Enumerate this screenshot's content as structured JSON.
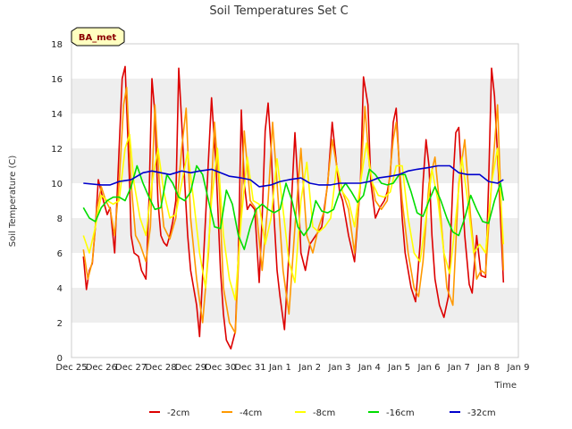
{
  "chart_data": {
    "type": "line",
    "title": "Soil Temperatures Set C",
    "xlabel": "Time",
    "ylabel": "Soil Temperature (C)",
    "station_badge": "BA_met",
    "ylim": [
      0,
      18
    ],
    "yticks": [
      0,
      2,
      4,
      6,
      8,
      10,
      12,
      14,
      16,
      18
    ],
    "xlim": [
      0,
      15
    ],
    "x_unit": "days since Dec 25",
    "xtick_labels": [
      "Dec 25",
      "Dec 26",
      "Dec 27",
      "Dec 28",
      "Dec 29",
      "Dec 30",
      "Dec 31",
      "Jan 1",
      "Jan 2",
      "Jan 3",
      "Jan 4",
      "Jan 5",
      "Jan 6",
      "Jan 7",
      "Jan 8",
      "Jan 9"
    ],
    "grid": "horizontal bands",
    "legend_position": "bottom",
    "colors": {
      "band": "#eeeeee",
      "badge_fill": "#ffffc0"
    },
    "series": [
      {
        "name": "-2cm",
        "color": "#dd0000",
        "x": [
          0.4,
          0.5,
          0.6,
          0.7,
          0.8,
          0.9,
          1.0,
          1.1,
          1.2,
          1.3,
          1.45,
          1.6,
          1.7,
          1.8,
          1.95,
          2.0,
          2.1,
          2.25,
          2.35,
          2.5,
          2.6,
          2.7,
          2.8,
          2.9,
          3.0,
          3.1,
          3.2,
          3.3,
          3.4,
          3.5,
          3.6,
          3.7,
          3.8,
          3.9,
          4.0,
          4.2,
          4.3,
          4.5,
          4.7,
          4.85,
          5.0,
          5.1,
          5.2,
          5.35,
          5.5,
          5.6,
          5.7,
          5.8,
          5.9,
          6.0,
          6.15,
          6.3,
          6.4,
          6.5,
          6.6,
          6.7,
          6.8,
          6.9,
          7.0,
          7.15,
          7.3,
          7.5,
          7.6,
          7.7,
          7.85,
          8.0,
          8.2,
          8.4,
          8.6,
          8.75,
          8.9,
          9.0,
          9.1,
          9.2,
          9.3,
          9.5,
          9.7,
          9.8,
          9.95,
          10.05,
          10.2,
          10.35,
          10.5,
          10.6,
          10.7,
          10.8,
          10.9,
          11.0,
          11.1,
          11.2,
          11.4,
          11.55,
          11.7,
          11.8,
          11.9,
          12.0,
          12.1,
          12.2,
          12.35,
          12.5,
          12.65,
          12.8,
          12.9,
          13.0,
          13.1,
          13.2,
          13.35,
          13.45,
          13.6,
          13.75,
          13.9,
          14.0,
          14.1,
          14.2,
          14.35,
          14.5
        ],
        "values": [
          5.8,
          3.9,
          5.0,
          5.4,
          7.5,
          10.2,
          9.5,
          8.8,
          8.2,
          8.6,
          6.0,
          12.0,
          16.0,
          16.7,
          10.0,
          7.0,
          6.0,
          5.8,
          5.0,
          4.5,
          9.0,
          16.0,
          14.0,
          9.0,
          7.0,
          6.6,
          6.4,
          7.0,
          7.8,
          9.0,
          16.6,
          13.5,
          10.0,
          7.0,
          5.0,
          3.0,
          1.2,
          8.0,
          14.9,
          11.0,
          5.0,
          2.5,
          1.0,
          0.5,
          1.5,
          6.0,
          14.2,
          10.0,
          8.5,
          8.8,
          8.5,
          4.3,
          8.0,
          13.0,
          14.6,
          12.0,
          8.0,
          5.0,
          3.5,
          1.6,
          6.0,
          12.9,
          10.0,
          6.0,
          5.0,
          6.5,
          7.0,
          7.5,
          10.0,
          13.5,
          11.0,
          9.5,
          9.0,
          8.0,
          7.0,
          5.5,
          10.0,
          16.1,
          14.5,
          10.0,
          8.0,
          8.6,
          9.0,
          9.5,
          10.5,
          13.5,
          14.3,
          11.0,
          8.0,
          6.0,
          4.0,
          3.2,
          6.5,
          10.0,
          12.5,
          11.0,
          7.0,
          4.5,
          3.0,
          2.3,
          3.5,
          10.0,
          12.9,
          13.2,
          10.0,
          7.0,
          4.2,
          3.7,
          7.0,
          4.7,
          4.6,
          10.0,
          16.6,
          15.0,
          10.0,
          4.3
        ]
      },
      {
        "name": "-4cm",
        "color": "#ff9900",
        "x": [
          0.4,
          0.55,
          0.7,
          0.85,
          1.0,
          1.15,
          1.3,
          1.45,
          1.6,
          1.75,
          1.85,
          2.0,
          2.15,
          2.3,
          2.5,
          2.65,
          2.8,
          2.95,
          3.1,
          3.3,
          3.5,
          3.7,
          3.85,
          4.0,
          4.2,
          4.4,
          4.6,
          4.8,
          4.95,
          5.1,
          5.3,
          5.5,
          5.65,
          5.8,
          6.0,
          6.2,
          6.4,
          6.6,
          6.75,
          6.9,
          7.1,
          7.3,
          7.5,
          7.7,
          7.9,
          8.1,
          8.3,
          8.5,
          8.75,
          8.9,
          9.1,
          9.3,
          9.5,
          9.7,
          9.85,
          10.0,
          10.2,
          10.4,
          10.6,
          10.8,
          10.9,
          11.1,
          11.3,
          11.5,
          11.65,
          11.8,
          12.0,
          12.2,
          12.4,
          12.6,
          12.8,
          13.0,
          13.2,
          13.4,
          13.6,
          13.75,
          13.9,
          14.1,
          14.3,
          14.5
        ],
        "values": [
          6.2,
          4.5,
          5.5,
          8.5,
          9.8,
          9.0,
          8.5,
          7.0,
          10.0,
          14.5,
          15.5,
          10.0,
          7.0,
          6.5,
          5.5,
          7.5,
          14.5,
          10.0,
          7.5,
          6.8,
          8.0,
          12.0,
          14.3,
          8.0,
          4.5,
          2.0,
          6.0,
          13.5,
          10.0,
          4.0,
          2.0,
          1.4,
          7.0,
          13.0,
          9.0,
          8.5,
          5.0,
          9.0,
          13.5,
          10.0,
          5.0,
          2.5,
          7.5,
          12.0,
          7.0,
          6.0,
          7.5,
          8.5,
          12.5,
          11.0,
          9.5,
          8.5,
          6.0,
          10.0,
          14.4,
          11.0,
          9.0,
          8.5,
          9.0,
          12.5,
          13.5,
          9.0,
          6.0,
          4.0,
          3.5,
          5.5,
          10.0,
          11.5,
          8.0,
          4.0,
          3.0,
          10.0,
          12.5,
          8.0,
          4.5,
          5.0,
          4.8,
          10.0,
          14.5,
          5.0
        ]
      },
      {
        "name": "-8cm",
        "color": "#ffff00",
        "x": [
          0.4,
          0.6,
          0.8,
          1.0,
          1.2,
          1.4,
          1.6,
          1.8,
          1.95,
          2.1,
          2.3,
          2.5,
          2.7,
          2.9,
          3.1,
          3.3,
          3.5,
          3.7,
          3.9,
          4.1,
          4.3,
          4.5,
          4.7,
          4.9,
          5.1,
          5.3,
          5.5,
          5.7,
          5.9,
          6.1,
          6.3,
          6.5,
          6.7,
          6.9,
          7.1,
          7.3,
          7.5,
          7.7,
          7.9,
          8.1,
          8.3,
          8.5,
          8.7,
          8.9,
          9.1,
          9.3,
          9.5,
          9.7,
          9.9,
          10.1,
          10.3,
          10.5,
          10.7,
          10.9,
          11.1,
          11.3,
          11.5,
          11.7,
          11.9,
          12.1,
          12.3,
          12.5,
          12.7,
          12.9,
          13.1,
          13.3,
          13.5,
          13.7,
          13.9,
          14.1,
          14.3,
          14.5
        ],
        "values": [
          7.0,
          6.0,
          7.5,
          9.3,
          9.0,
          8.8,
          9.0,
          12.0,
          12.8,
          10.0,
          8.0,
          7.0,
          10.0,
          12.0,
          9.5,
          8.0,
          8.2,
          10.0,
          11.8,
          9.0,
          6.0,
          4.0,
          9.0,
          12.0,
          7.0,
          4.5,
          3.3,
          8.0,
          11.5,
          9.0,
          8.8,
          6.5,
          8.0,
          11.4,
          8.5,
          5.5,
          4.3,
          9.0,
          11.2,
          7.5,
          7.2,
          7.5,
          8.0,
          11.0,
          9.5,
          9.0,
          7.5,
          10.0,
          12.3,
          10.0,
          9.3,
          9.2,
          9.5,
          11.0,
          11.0,
          8.0,
          6.0,
          5.5,
          8.0,
          10.8,
          9.0,
          6.0,
          4.8,
          8.0,
          11.5,
          9.0,
          6.0,
          6.5,
          6.0,
          10.0,
          12.0,
          6.5
        ]
      },
      {
        "name": "-16cm",
        "color": "#00dd00",
        "x": [
          0.4,
          0.6,
          0.8,
          1.0,
          1.2,
          1.4,
          1.6,
          1.8,
          2.0,
          2.2,
          2.4,
          2.6,
          2.8,
          3.0,
          3.2,
          3.4,
          3.6,
          3.8,
          4.0,
          4.2,
          4.4,
          4.6,
          4.8,
          5.0,
          5.2,
          5.4,
          5.6,
          5.8,
          6.0,
          6.2,
          6.4,
          6.6,
          6.8,
          7.0,
          7.2,
          7.4,
          7.6,
          7.8,
          8.0,
          8.2,
          8.4,
          8.6,
          8.8,
          9.0,
          9.2,
          9.4,
          9.6,
          9.8,
          10.0,
          10.2,
          10.4,
          10.6,
          10.8,
          11.0,
          11.2,
          11.4,
          11.6,
          11.8,
          12.0,
          12.2,
          12.4,
          12.6,
          12.8,
          13.0,
          13.2,
          13.4,
          13.6,
          13.8,
          14.0,
          14.2,
          14.4,
          14.5
        ],
        "values": [
          8.6,
          8.0,
          7.8,
          8.6,
          9.0,
          9.2,
          9.2,
          9.0,
          9.8,
          11.0,
          10.0,
          9.2,
          8.5,
          8.6,
          10.5,
          10.0,
          9.2,
          9.0,
          9.5,
          11.0,
          10.5,
          9.0,
          7.5,
          7.4,
          9.6,
          8.8,
          7.0,
          6.2,
          7.5,
          8.5,
          8.8,
          8.5,
          8.3,
          8.5,
          10.0,
          9.0,
          7.5,
          7.0,
          7.5,
          9.0,
          8.4,
          8.3,
          8.5,
          9.5,
          10.0,
          9.5,
          8.9,
          9.3,
          10.8,
          10.5,
          10.0,
          9.9,
          10.0,
          10.5,
          10.5,
          9.5,
          8.3,
          8.1,
          9.0,
          9.8,
          9.0,
          8.0,
          7.2,
          7.0,
          8.0,
          9.3,
          8.5,
          7.8,
          7.7,
          9.0,
          10.0,
          9.0
        ]
      },
      {
        "name": "-32cm",
        "color": "#0000cc",
        "x": [
          0.4,
          1.0,
          1.3,
          1.6,
          2.0,
          2.4,
          2.7,
          3.0,
          3.3,
          3.7,
          4.0,
          4.3,
          4.7,
          5.0,
          5.3,
          5.7,
          6.0,
          6.3,
          6.7,
          7.0,
          7.3,
          7.7,
          8.0,
          8.3,
          8.7,
          9.0,
          9.3,
          9.7,
          10.0,
          10.3,
          10.7,
          11.0,
          11.3,
          11.6,
          12.0,
          12.3,
          12.7,
          13.0,
          13.3,
          13.7,
          14.0,
          14.3,
          14.5
        ],
        "values": [
          10.0,
          9.9,
          9.9,
          10.1,
          10.2,
          10.6,
          10.7,
          10.6,
          10.5,
          10.7,
          10.6,
          10.7,
          10.8,
          10.6,
          10.4,
          10.3,
          10.2,
          9.8,
          9.9,
          10.1,
          10.2,
          10.3,
          10.0,
          9.9,
          9.9,
          10.0,
          10.0,
          10.0,
          10.1,
          10.3,
          10.4,
          10.5,
          10.7,
          10.8,
          10.9,
          11.0,
          11.0,
          10.6,
          10.5,
          10.5,
          10.1,
          10.0,
          10.2
        ]
      }
    ]
  }
}
